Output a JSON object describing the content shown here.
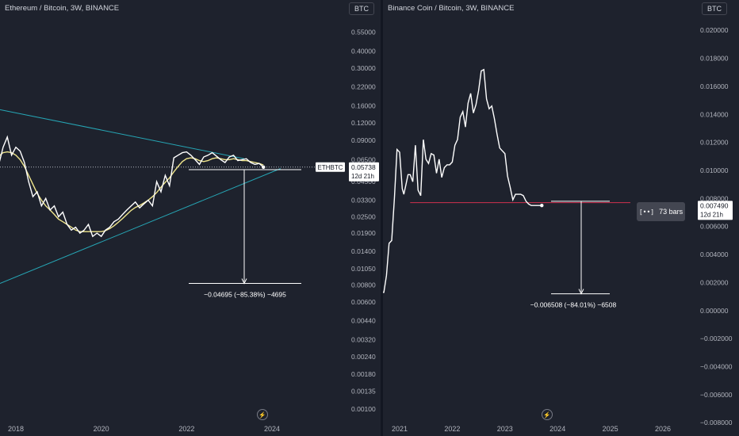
{
  "left_pane": {
    "title": "Ethereum / Bitcoin, 3W, BINANCE",
    "currency": "BTC",
    "symbol_tag": "ETHBTC",
    "price_tag": "0.05738",
    "countdown": "12d 21h",
    "measure_label": "−0.04695 (−85.38%) −4695",
    "logo_glyph": "⚡"
  },
  "right_pane": {
    "title": "Binance Coin / Bitcoin, 3W, BINANCE",
    "currency": "BTC",
    "price_tag": "0.007490",
    "countdown": "12d 21h",
    "measure_label": "−0.006508 (−84.01%) −6508",
    "bars_label": "73 bars",
    "bars_icon": "[••]",
    "logo_glyph": "⚡"
  },
  "chart_data": [
    {
      "type": "line",
      "y_scale": "log",
      "yticks": [
        "0.55000",
        "0.40000",
        "0.30000",
        "0.22000",
        "0.16000",
        "0.12000",
        "0.09000",
        "0.06500",
        "0.04500",
        "0.03300",
        "0.02500",
        "0.01900",
        "0.01400",
        "0.01050",
        "0.00800",
        "0.00600",
        "0.00440",
        "0.00320",
        "0.00240",
        "0.00180",
        "0.00135",
        "0.00100"
      ],
      "xticks": [
        "2018",
        "2020",
        "2022",
        "2024"
      ],
      "ylim": [
        0.00095,
        0.75
      ],
      "x": [
        2016.8,
        2017.0,
        2017.2,
        2017.4,
        2017.5,
        2017.6,
        2017.7,
        2017.8,
        2017.9,
        2018.0,
        2018.1,
        2018.2,
        2018.3,
        2018.4,
        2018.5,
        2018.6,
        2018.7,
        2018.8,
        2018.9,
        2019.0,
        2019.1,
        2019.2,
        2019.3,
        2019.4,
        2019.5,
        2019.6,
        2019.7,
        2019.8,
        2019.9,
        2020.0,
        2020.1,
        2020.2,
        2020.3,
        2020.4,
        2020.5,
        2020.6,
        2020.7,
        2020.8,
        2020.9,
        2021.0,
        2021.1,
        2021.2,
        2021.3,
        2021.4,
        2021.5,
        2021.6,
        2021.7,
        2021.8,
        2021.9,
        2022.0,
        2022.1,
        2022.2,
        2022.3,
        2022.4,
        2022.5,
        2022.6,
        2022.7,
        2022.8,
        2022.9,
        2023.0,
        2023.1,
        2023.2,
        2023.3,
        2023.4,
        2023.5,
        2023.6,
        2023.7,
        2023.8
      ],
      "series": [
        {
          "values": [
            0.08,
            0.055,
            0.065,
            0.05,
            0.072,
            0.06,
            0.08,
            0.095,
            0.07,
            0.08,
            0.075,
            0.062,
            0.045,
            0.035,
            0.038,
            0.03,
            0.034,
            0.028,
            0.03,
            0.025,
            0.027,
            0.022,
            0.02,
            0.021,
            0.019,
            0.02,
            0.022,
            0.018,
            0.019,
            0.018,
            0.02,
            0.021,
            0.023,
            0.024,
            0.026,
            0.028,
            0.03,
            0.032,
            0.029,
            0.031,
            0.033,
            0.03,
            0.045,
            0.038,
            0.05,
            0.042,
            0.067,
            0.07,
            0.073,
            0.074,
            0.07,
            0.065,
            0.06,
            0.068,
            0.07,
            0.073,
            0.069,
            0.065,
            0.062,
            0.068,
            0.07,
            0.064,
            0.065,
            0.066,
            0.062,
            0.06,
            0.061,
            0.05738
          ]
        },
        {
          "values": [
            0.068,
            0.064,
            0.062,
            0.063,
            0.066,
            0.069,
            0.073,
            0.074,
            0.073,
            0.07,
            0.065,
            0.058,
            0.05,
            0.043,
            0.037,
            0.033,
            0.03,
            0.028,
            0.026,
            0.024,
            0.023,
            0.022,
            0.021,
            0.02,
            0.0195,
            0.0195,
            0.0195,
            0.0195,
            0.0195,
            0.0195,
            0.0198,
            0.0205,
            0.0215,
            0.0228,
            0.0243,
            0.026,
            0.0278,
            0.0292,
            0.0302,
            0.0315,
            0.033,
            0.035,
            0.0375,
            0.041,
            0.0445,
            0.048,
            0.053,
            0.058,
            0.063,
            0.066,
            0.067,
            0.066,
            0.064,
            0.063,
            0.064,
            0.066,
            0.067,
            0.066,
            0.065,
            0.065,
            0.066,
            0.065,
            0.064,
            0.064,
            0.063,
            0.062,
            0.061,
            0.0595
          ]
        }
      ]
    },
    {
      "type": "line",
      "yticks": [
        "0.020000",
        "0.018000",
        "0.016000",
        "0.014000",
        "0.012000",
        "0.010000",
        "0.008000",
        "0.006000",
        "0.004000",
        "0.002000",
        "0.000000",
        "−0.002000",
        "−0.004000",
        "−0.006000",
        "−0.008000"
      ],
      "xticks": [
        "2021",
        "2022",
        "2023",
        "2024",
        "2025",
        "2026"
      ],
      "ylim": [
        -0.0081,
        0.0212
      ],
      "x": [
        2020.45,
        2020.55,
        2020.6,
        2020.65,
        2020.7,
        2020.75,
        2020.8,
        2020.85,
        2020.9,
        2020.95,
        2021.0,
        2021.05,
        2021.08,
        2021.12,
        2021.16,
        2021.2,
        2021.25,
        2021.3,
        2021.35,
        2021.4,
        2021.45,
        2021.5,
        2021.55,
        2021.6,
        2021.65,
        2021.7,
        2021.75,
        2021.8,
        2021.85,
        2021.9,
        2021.95,
        2022.0,
        2022.05,
        2022.1,
        2022.15,
        2022.2,
        2022.25,
        2022.3,
        2022.35,
        2022.4,
        2022.45,
        2022.5,
        2022.55,
        2022.6,
        2022.65,
        2022.7,
        2022.75,
        2022.8,
        2022.85,
        2022.9,
        2022.95,
        2023.0,
        2023.05,
        2023.1,
        2023.15,
        2023.2,
        2023.25,
        2023.3,
        2023.35,
        2023.4,
        2023.45,
        2023.5,
        2023.55,
        2023.6,
        2023.65,
        2023.7
      ],
      "series": [
        {
          "values": [
            0.0027,
            0.0018,
            0.0015,
            0.0013,
            0.0013,
            0.0025,
            0.0048,
            0.005,
            0.008,
            0.0115,
            0.0113,
            0.0087,
            0.0083,
            0.009,
            0.0097,
            0.0097,
            0.0092,
            0.0118,
            0.0086,
            0.0082,
            0.0122,
            0.0108,
            0.0105,
            0.0112,
            0.0111,
            0.0098,
            0.0108,
            0.0095,
            0.0102,
            0.0104,
            0.0104,
            0.0106,
            0.0118,
            0.0122,
            0.0138,
            0.0142,
            0.0131,
            0.0148,
            0.0155,
            0.0141,
            0.0147,
            0.0157,
            0.0171,
            0.0172,
            0.0151,
            0.0144,
            0.0146,
            0.0137,
            0.0126,
            0.0116,
            0.0114,
            0.0112,
            0.0096,
            0.0088,
            0.0079,
            0.0083,
            0.0083,
            0.0083,
            0.0082,
            0.0078,
            0.0076,
            0.0075,
            0.0075,
            0.0075,
            0.0075,
            0.0075
          ]
        }
      ]
    }
  ]
}
